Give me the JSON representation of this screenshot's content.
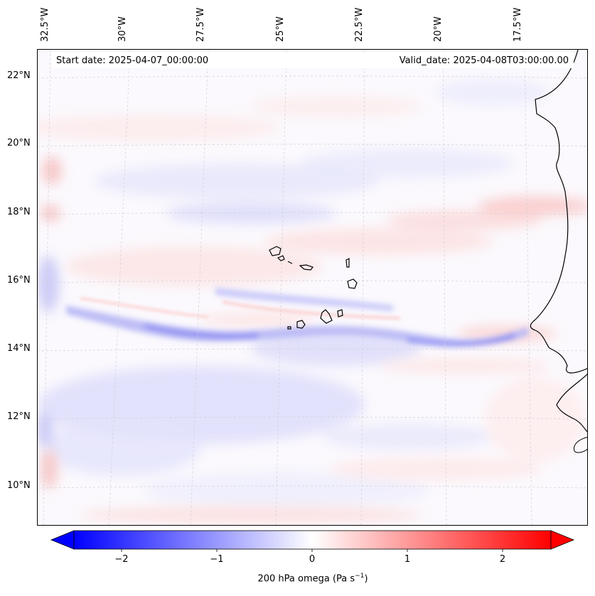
{
  "info": {
    "start_date": "Start date: 2025-04-07_00:00:00",
    "valid_date": "Valid_date: 2025-04-08T03:00:00.00"
  },
  "longitude_labels": [
    "32.5°W",
    "30°W",
    "27.5°W",
    "25°W",
    "22.5°W",
    "20°W",
    "17.5°W"
  ],
  "latitude_labels": [
    "22°N",
    "20°N",
    "18°N",
    "16°N",
    "14°N",
    "12°N",
    "10°N"
  ],
  "colorbar": {
    "title": "200 hPa omega (Pa s",
    "title_sup": "−1",
    "title_close": ")",
    "ticks": [
      "−2",
      "−1",
      "0",
      "1",
      "2"
    ],
    "range": [
      -2.6,
      2.6
    ],
    "colors": {
      "low": "#0000ff",
      "mid": "#ffffff",
      "high": "#ff0000"
    }
  },
  "map": {
    "variable": "200 hPa omega",
    "colormap": "bwr",
    "features": [
      "Cape Verde islands",
      "West African coastline"
    ]
  }
}
